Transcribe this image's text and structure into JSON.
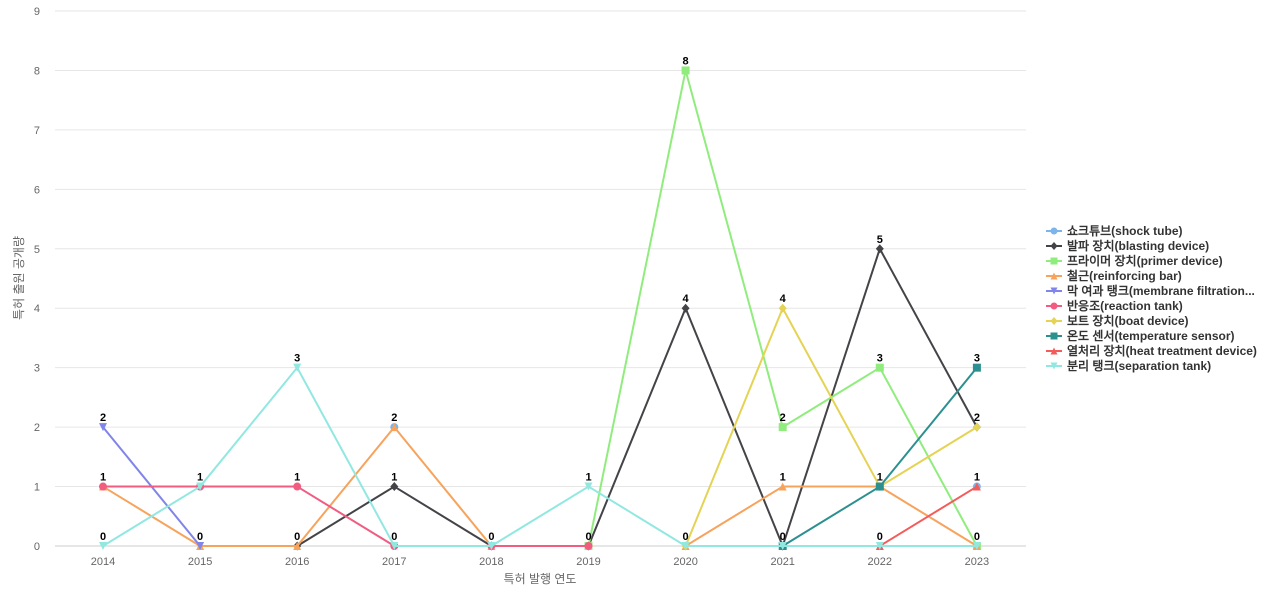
{
  "chart_data": {
    "type": "line",
    "title": "",
    "xlabel": "특허 발행 연도",
    "ylabel": "특허 출원 공개량",
    "categories": [
      "2014",
      "2015",
      "2016",
      "2017",
      "2018",
      "2019",
      "2020",
      "2021",
      "2022",
      "2023"
    ],
    "ylim": [
      0,
      9
    ],
    "yticks": [
      0,
      1,
      2,
      3,
      4,
      5,
      6,
      7,
      8,
      9
    ],
    "grid": true,
    "legend_position": "right",
    "series": [
      {
        "name": "쇼크튜브(shock tube)",
        "color": "#7cb5ec",
        "marker": "circle",
        "values": [
          null,
          1,
          null,
          2,
          null,
          null,
          null,
          null,
          null,
          1
        ]
      },
      {
        "name": "발파 장치(blasting device)",
        "color": "#434348",
        "marker": "diamond",
        "values": [
          null,
          null,
          0,
          1,
          0,
          0,
          4,
          0,
          5,
          2
        ]
      },
      {
        "name": "프라이머 장치(primer device)",
        "color": "#90ed7d",
        "marker": "square",
        "values": [
          null,
          null,
          null,
          null,
          null,
          0,
          8,
          2,
          3,
          0
        ]
      },
      {
        "name": "철근(reinforcing bar)",
        "color": "#f7a35c",
        "marker": "triangle",
        "values": [
          1,
          0,
          0,
          2,
          0,
          null,
          0,
          1,
          1,
          0
        ]
      },
      {
        "name": "막 여과 탱크(membrane filtration...",
        "color": "#8085e9",
        "marker": "triangle-down",
        "values": [
          2,
          0,
          null,
          null,
          null,
          null,
          null,
          null,
          null,
          null
        ]
      },
      {
        "name": "반응조(reaction tank)",
        "color": "#f15c80",
        "marker": "circle",
        "values": [
          1,
          1,
          1,
          0,
          0,
          0,
          null,
          null,
          null,
          null
        ]
      },
      {
        "name": "보트 장치(boat device)",
        "color": "#e4d354",
        "marker": "diamond",
        "values": [
          null,
          null,
          null,
          null,
          null,
          null,
          0,
          4,
          1,
          2
        ]
      },
      {
        "name": "온도 센서(temperature sensor)",
        "color": "#2b908f",
        "marker": "square",
        "values": [
          null,
          null,
          null,
          null,
          null,
          null,
          null,
          0,
          1,
          3
        ]
      },
      {
        "name": "열처리 장치(heat treatment device)",
        "color": "#f45b5b",
        "marker": "triangle",
        "values": [
          null,
          null,
          null,
          null,
          null,
          null,
          null,
          null,
          0,
          1
        ]
      },
      {
        "name": "분리 탱크(separation tank)",
        "color": "#91e8e1",
        "marker": "triangle-down",
        "values": [
          0,
          1,
          3,
          0,
          0,
          1,
          0,
          0,
          0,
          0
        ]
      }
    ],
    "data_labels": [
      {
        "x": "2014",
        "y": 2,
        "text": "2"
      },
      {
        "x": "2014",
        "y": 1,
        "text": "1"
      },
      {
        "x": "2014",
        "y": 0,
        "text": "0"
      },
      {
        "x": "2015",
        "y": 1,
        "text": "1"
      },
      {
        "x": "2015",
        "y": 0,
        "text": "0"
      },
      {
        "x": "2016",
        "y": 3,
        "text": "3"
      },
      {
        "x": "2016",
        "y": 1,
        "text": "1"
      },
      {
        "x": "2016",
        "y": 0,
        "text": "0"
      },
      {
        "x": "2017",
        "y": 2,
        "text": "2"
      },
      {
        "x": "2017",
        "y": 1,
        "text": "1"
      },
      {
        "x": "2017",
        "y": 0,
        "text": "0"
      },
      {
        "x": "2018",
        "y": 0,
        "text": "0"
      },
      {
        "x": "2019",
        "y": 1,
        "text": "1"
      },
      {
        "x": "2019",
        "y": 0,
        "text": "0"
      },
      {
        "x": "2020",
        "y": 8,
        "text": "8"
      },
      {
        "x": "2020",
        "y": 4,
        "text": "4"
      },
      {
        "x": "2020",
        "y": 0,
        "text": "0"
      },
      {
        "x": "2021",
        "y": 4,
        "text": "4"
      },
      {
        "x": "2021",
        "y": 2,
        "text": "2"
      },
      {
        "x": "2021",
        "y": 1,
        "text": "1"
      },
      {
        "x": "2021",
        "y": 0,
        "text": "0"
      },
      {
        "x": "2022",
        "y": 5,
        "text": "5"
      },
      {
        "x": "2022",
        "y": 3,
        "text": "3"
      },
      {
        "x": "2022",
        "y": 1,
        "text": "1"
      },
      {
        "x": "2022",
        "y": 0,
        "text": "0"
      },
      {
        "x": "2023",
        "y": 3,
        "text": "3"
      },
      {
        "x": "2023",
        "y": 2,
        "text": "2"
      },
      {
        "x": "2023",
        "y": 1,
        "text": "1"
      },
      {
        "x": "2023",
        "y": 0,
        "text": "0"
      }
    ]
  }
}
